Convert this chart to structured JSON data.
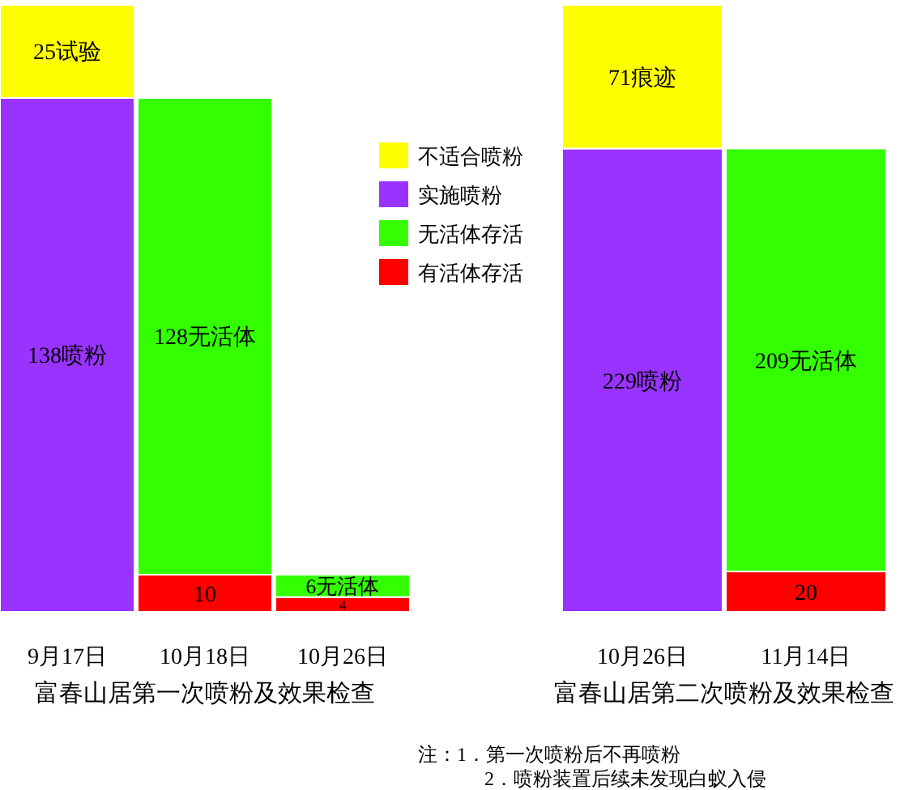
{
  "chart_data": [
    {
      "type": "bar",
      "stacked": true,
      "categories": [
        "9月17日",
        "10月18日",
        "10月26日"
      ],
      "xlabel": "富春山居第一次喷粉及效果检查",
      "legend": "right",
      "series": [
        {
          "name": "有活体存活",
          "color": "#ff0000",
          "values": [
            null,
            10,
            4
          ],
          "value_labels": [
            null,
            "10",
            "4"
          ]
        },
        {
          "name": "无活体存活",
          "color": "#33ff00",
          "values": [
            null,
            128,
            6
          ],
          "value_labels": [
            null,
            "128无活体",
            "6无活体"
          ]
        },
        {
          "name": "实施喷粉",
          "color": "#9933ff",
          "values": [
            138,
            null,
            null
          ],
          "value_labels": [
            "138喷粉",
            null,
            null
          ]
        },
        {
          "name": "不适合喷粉",
          "color": "#ffff00",
          "values": [
            25,
            null,
            null
          ],
          "value_labels": [
            "25试验",
            null,
            null
          ]
        }
      ]
    },
    {
      "type": "bar",
      "stacked": true,
      "categories": [
        "10月26日",
        "11月14日"
      ],
      "xlabel": "富春山居第二次喷粉及效果检查",
      "series": [
        {
          "color": "#ff0000",
          "values": [
            null,
            20
          ],
          "value_labels": [
            null,
            "20"
          ]
        },
        {
          "color": "#33ff00",
          "values": [
            null,
            209
          ],
          "value_labels": [
            null,
            "209无活体"
          ]
        },
        {
          "color": "#9933ff",
          "values": [
            229,
            null
          ],
          "value_labels": [
            "229喷粉",
            null
          ]
        },
        {
          "color": "#ffff00",
          "values": [
            71,
            null
          ],
          "value_labels": [
            "71痕迹",
            null
          ]
        }
      ],
      "annotations": [
        "注：1．第一次喷粉后不再喷粉",
        "2．喷粉装置后续未发现白蚁入侵"
      ]
    }
  ]
}
